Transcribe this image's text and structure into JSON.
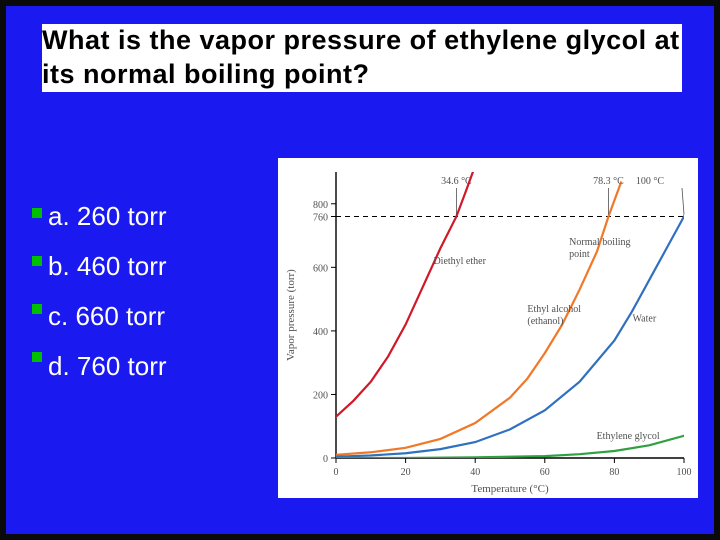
{
  "title": "What is the vapor pressure of ethylene glycol at its normal boiling point?",
  "answers": {
    "a": "a. 260 torr",
    "b": "b. 460 torr",
    "c": "c. 660 torr",
    "d": "d. 760 torr"
  },
  "chart": {
    "type": "line",
    "xlabel": "Temperature (°C)",
    "ylabel": "Vapor pressure (torr)",
    "xlim": [
      0,
      100
    ],
    "ylim": [
      0,
      900
    ],
    "xticks": [
      0,
      20,
      40,
      60,
      80,
      100
    ],
    "yticks": [
      0,
      200,
      400,
      600,
      760,
      800
    ],
    "ytick_labels": [
      "0",
      "200",
      "400",
      "600",
      "760",
      "800"
    ],
    "background_color": "#ffffff",
    "axis_color": "#000000",
    "text_color": "#505050",
    "label_fontsize": 11,
    "tick_fontsize": 10,
    "annotation_fontsize": 10,
    "normal_bp_line": 760,
    "temp_markers": [
      {
        "label": "34.6 °C",
        "x": 34.6
      },
      {
        "label": "78.3 °C",
        "x": 78.3
      },
      {
        "label": "100 °C",
        "x": 100
      }
    ],
    "annotations": [
      {
        "text": "Diethyl ether",
        "ref_x": 28,
        "ref_y": 610
      },
      {
        "text": "Normal boiling point",
        "ref_x": 67,
        "ref_y": 670
      },
      {
        "text": "Ethyl alcohol (ethanol)",
        "ref_x": 55,
        "ref_y": 460
      },
      {
        "text": "Water",
        "ref_x": 92,
        "ref_y": 430
      },
      {
        "text": "Ethylene glycol",
        "ref_x": 93,
        "ref_y": 60
      }
    ],
    "series": [
      {
        "name": "Diethyl ether",
        "color": "#d01828",
        "points": [
          [
            -5,
            80
          ],
          [
            0,
            130
          ],
          [
            5,
            180
          ],
          [
            10,
            240
          ],
          [
            15,
            320
          ],
          [
            20,
            420
          ],
          [
            25,
            540
          ],
          [
            30,
            660
          ],
          [
            34.6,
            760
          ],
          [
            37,
            830
          ],
          [
            40,
            920
          ]
        ]
      },
      {
        "name": "Ethyl alcohol",
        "color": "#f07828",
        "points": [
          [
            0,
            10
          ],
          [
            10,
            18
          ],
          [
            20,
            32
          ],
          [
            30,
            60
          ],
          [
            40,
            110
          ],
          [
            50,
            190
          ],
          [
            55,
            250
          ],
          [
            60,
            330
          ],
          [
            65,
            420
          ],
          [
            70,
            530
          ],
          [
            75,
            650
          ],
          [
            78.3,
            760
          ],
          [
            82,
            870
          ]
        ]
      },
      {
        "name": "Water",
        "color": "#3070c0",
        "points": [
          [
            0,
            4
          ],
          [
            10,
            8
          ],
          [
            20,
            15
          ],
          [
            30,
            28
          ],
          [
            40,
            50
          ],
          [
            50,
            90
          ],
          [
            60,
            150
          ],
          [
            70,
            240
          ],
          [
            80,
            370
          ],
          [
            85,
            460
          ],
          [
            90,
            560
          ],
          [
            95,
            660
          ],
          [
            100,
            760
          ],
          [
            103,
            830
          ]
        ]
      },
      {
        "name": "Ethylene glycol",
        "color": "#30a040",
        "points": [
          [
            0,
            0
          ],
          [
            20,
            0
          ],
          [
            40,
            2
          ],
          [
            60,
            6
          ],
          [
            70,
            12
          ],
          [
            80,
            22
          ],
          [
            90,
            40
          ],
          [
            100,
            70
          ],
          [
            105,
            95
          ]
        ]
      }
    ],
    "line_width": 2.2
  }
}
